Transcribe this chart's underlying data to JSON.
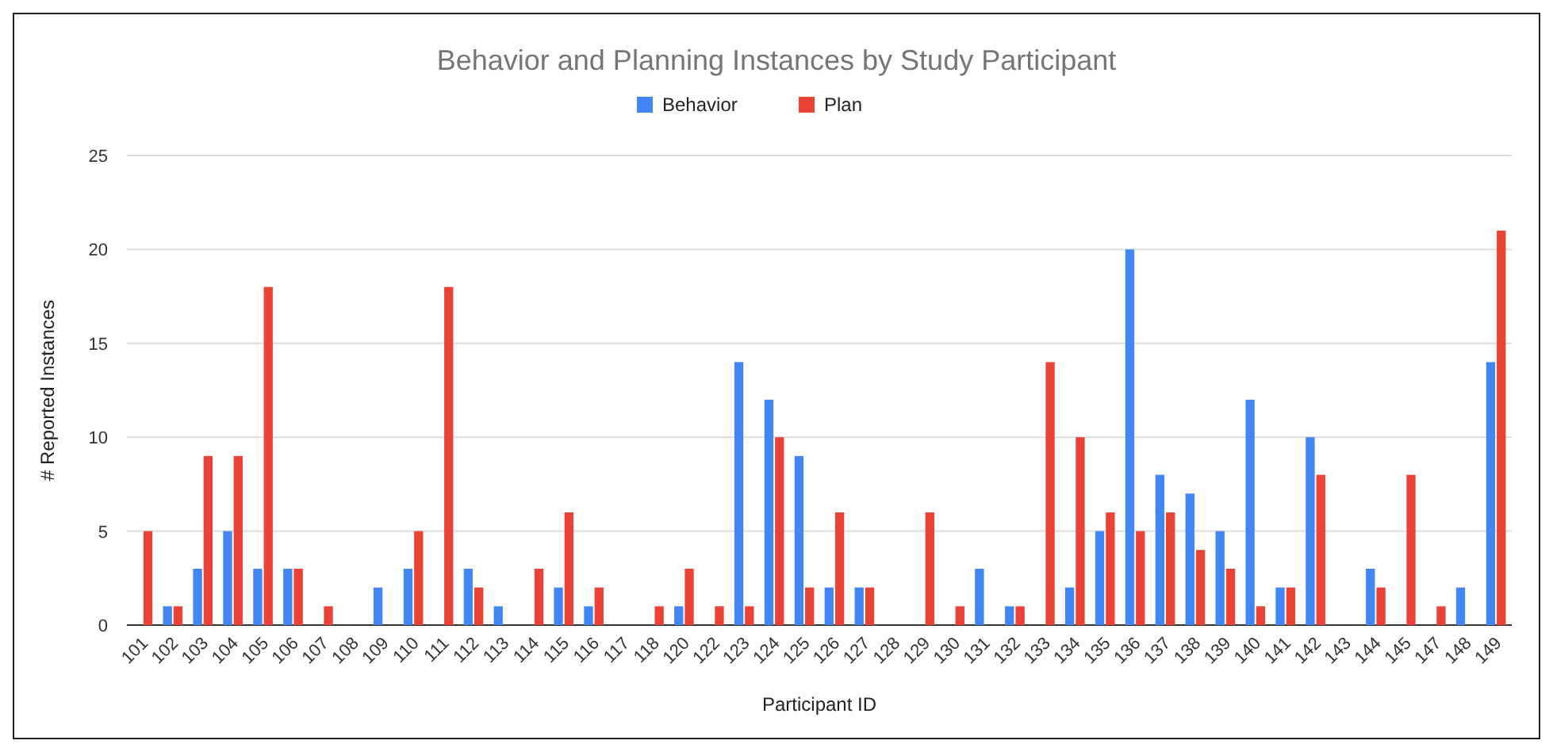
{
  "chart_data": {
    "type": "bar",
    "title": "Behavior and Planning Instances by Study Participant",
    "xlabel": "Participant ID",
    "ylabel": "# Reported Instances",
    "categories": [
      "101",
      "102",
      "103",
      "104",
      "105",
      "106",
      "107",
      "108",
      "109",
      "110",
      "111",
      "112",
      "113",
      "114",
      "115",
      "116",
      "117",
      "118",
      "120",
      "122",
      "123",
      "124",
      "125",
      "126",
      "127",
      "128",
      "129",
      "130",
      "131",
      "132",
      "133",
      "134",
      "135",
      "136",
      "137",
      "138",
      "139",
      "140",
      "141",
      "142",
      "143",
      "144",
      "145",
      "147",
      "148",
      "149"
    ],
    "series": [
      {
        "name": "Behavior",
        "color": "#4285f4",
        "values": [
          0,
          1,
          3,
          5,
          3,
          3,
          0,
          0,
          2,
          3,
          0,
          3,
          1,
          0,
          2,
          1,
          0,
          0,
          1,
          0,
          14,
          12,
          9,
          2,
          2,
          0,
          0,
          0,
          3,
          1,
          0,
          2,
          5,
          20,
          8,
          7,
          5,
          12,
          2,
          10,
          0,
          3,
          0,
          0,
          2,
          14
        ]
      },
      {
        "name": "Plan",
        "color": "#ea4335",
        "values": [
          5,
          1,
          9,
          9,
          18,
          3,
          1,
          0,
          0,
          5,
          18,
          2,
          0,
          3,
          6,
          2,
          0,
          1,
          3,
          1,
          1,
          10,
          2,
          6,
          2,
          0,
          6,
          1,
          0,
          1,
          14,
          10,
          6,
          5,
          6,
          4,
          3,
          1,
          2,
          8,
          0,
          2,
          8,
          1,
          0,
          21
        ]
      }
    ],
    "ylim": [
      0,
      25
    ],
    "yticks": [
      0,
      5,
      10,
      15,
      20,
      25
    ],
    "grid": "y",
    "legend": "top"
  }
}
